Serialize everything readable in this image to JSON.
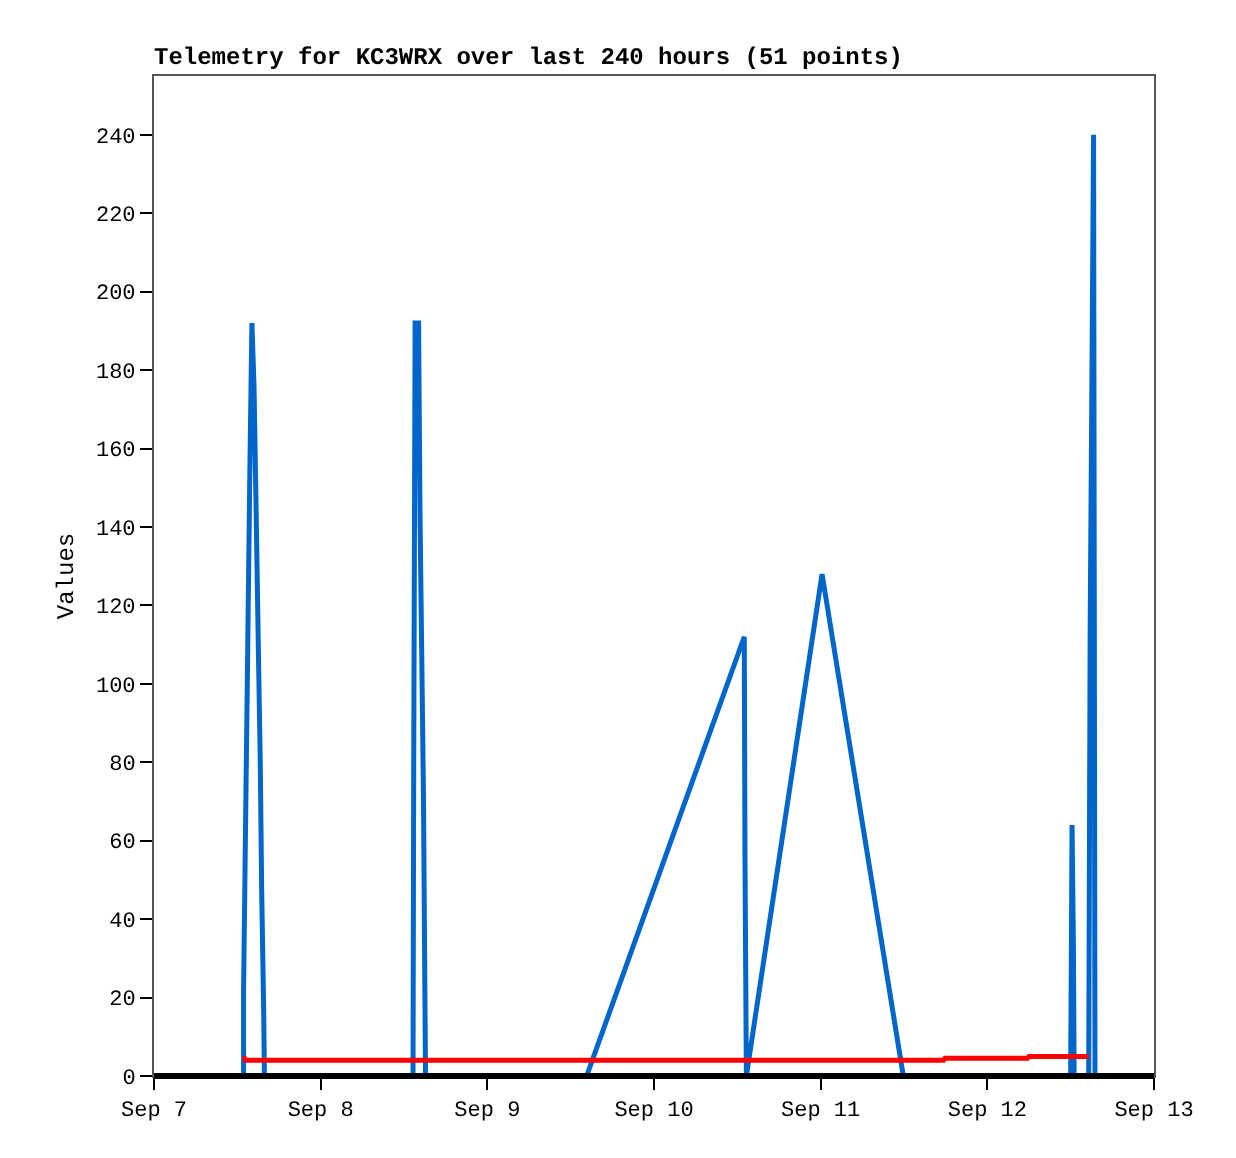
{
  "chart_data": {
    "type": "line",
    "title": "Telemetry for KC3WRX over last 240 hours (51 points)",
    "ylabel": "Values",
    "xlim": [
      "--09-07",
      "--09-13"
    ],
    "xticks": [
      {
        "value": "--09-07",
        "label": "Sep 7"
      },
      {
        "value": "--09-08",
        "label": "Sep 8"
      },
      {
        "value": "--09-09",
        "label": "Sep 9"
      },
      {
        "value": "--09-10",
        "label": "Sep 10"
      },
      {
        "value": "--09-11",
        "label": "Sep 11"
      },
      {
        "value": "--09-12",
        "label": "Sep 12"
      },
      {
        "value": "--09-13",
        "label": "Sep 13"
      }
    ],
    "ylim": [
      0,
      255
    ],
    "yticks": [
      0,
      20,
      40,
      60,
      80,
      100,
      120,
      140,
      160,
      180,
      200,
      220,
      240
    ],
    "marker": "none",
    "line_style": "solid",
    "series": [
      {
        "color": "#0066cc",
        "x": [
          "--09-07T12:54",
          "--09-07T12:54",
          "--09-07T13:12",
          "--09-07T13:30",
          "--09-07T13:48",
          "--09-07T14:06",
          "--09-07T14:24",
          "--09-07T14:42",
          "--09-07T15:00",
          "--09-07T15:18",
          "--09-07T15:30",
          "--09-07T15:48",
          "--09-07T15:54",
          "--09-08T13:18",
          "--09-08T13:24",
          "--09-08T13:36",
          "--09-08T14:06",
          "--09-08T14:18",
          "--09-08T14:48",
          "--09-08T15:06",
          "--09-09T14:18",
          "--09-10T13:00",
          "--09-10T13:06",
          "--09-10T13:18",
          "--09-11T00:12",
          "--09-11T11:54",
          "--09-12T12:00",
          "--09-12T12:12",
          "--09-12T12:24",
          "--09-12T12:30",
          "--09-12T14:36",
          "--09-12T14:48",
          "--09-12T15:18",
          "--09-12T15:30"
        ],
        "values": [
          0,
          22,
          66,
          110,
          154,
          192,
          176,
          145,
          112,
          80,
          48,
          16,
          0,
          0,
          80,
          192,
          192,
          144,
          72,
          0,
          0,
          112,
          56,
          0,
          128,
          0,
          0,
          64,
          32,
          0,
          0,
          112,
          240,
          0
        ]
      },
      {
        "color": "#ff0000",
        "x": [
          "--09-07T12:54",
          "--09-07T13:12",
          "--09-11T17:42",
          "--09-11T17:54",
          "--09-12T05:48",
          "--09-12T06:00",
          "--09-12T14:36"
        ],
        "values": [
          5,
          4,
          4,
          4.5,
          4.5,
          5,
          5
        ]
      }
    ]
  }
}
